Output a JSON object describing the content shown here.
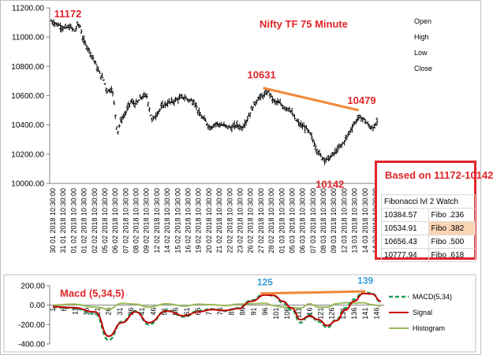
{
  "chart_data": [
    {
      "type": "line",
      "title": "Nifty TF 75 Minute",
      "subtype": "ohlc-bars",
      "ylim": [
        10000,
        11200
      ],
      "yticks": [
        "10000.00",
        "10200.00",
        "10400.00",
        "10600.00",
        "10800.00",
        "11000.00",
        "11200.00"
      ],
      "grid": false,
      "legend_position": "top-right",
      "legend": [
        "Open",
        "High",
        "Low",
        "Close"
      ],
      "x_tick_labels": [
        "30 01 2018 10:30:00",
        "31 01 2018 10:30:00",
        "01 02 2018 10:30:00",
        "01 02 2018 10:30:00",
        "02 02 2018 10:30:00",
        "05 02 2018 10:30:00",
        "06 02 2018 10:30:00",
        "07 02 2018 10:30:00",
        "08 02 2018 10:30:00",
        "09 02 2018 10:30:00",
        "12 02 2018 10:30:00",
        "14 02 2018 10:30:00",
        "15 02 2018 10:30:00",
        "16 02 2018 10:30:00",
        "19 02 2018 10:30:00",
        "20 02 2018 10:30:00",
        "21 02 2018 10:30:00",
        "22 02 2018 10:30:00",
        "23 02 2018 10:30:00",
        "26 02 2018 10:30:00",
        "27 02 2018 10:30:00",
        "28 02 2018 10:30:00",
        "01 03 2018 10:30:00",
        "05 03 2018 10:30:00",
        "06 03 2018 10:30:00",
        "07 03 2018 10:30:00",
        "08 03 2018 10:30:00",
        "09 03 2018 10:30:00",
        "12 03 2018 10:30:00",
        "13 03 2018 10:30:00",
        "14 03 2018 10:30:00",
        "14 03 2018 10:30:00"
      ],
      "price_path": [
        [
          0,
          11110
        ],
        [
          3,
          11080
        ],
        [
          5,
          11060
        ],
        [
          7,
          11070
        ],
        [
          9,
          11040
        ],
        [
          10,
          11090
        ],
        [
          11,
          11070
        ],
        [
          12,
          10980
        ],
        [
          14,
          10920
        ],
        [
          16,
          10850
        ],
        [
          18,
          10760
        ],
        [
          20,
          10700
        ],
        [
          21,
          10630
        ],
        [
          23,
          10650
        ],
        [
          24,
          10500
        ],
        [
          25,
          10340
        ],
        [
          26,
          10420
        ],
        [
          28,
          10480
        ],
        [
          30,
          10560
        ],
        [
          32,
          10540
        ],
        [
          34,
          10590
        ],
        [
          36,
          10600
        ],
        [
          38,
          10430
        ],
        [
          40,
          10480
        ],
        [
          42,
          10530
        ],
        [
          44,
          10550
        ],
        [
          46,
          10560
        ],
        [
          48,
          10580
        ],
        [
          50,
          10590
        ],
        [
          52,
          10570
        ],
        [
          54,
          10560
        ],
        [
          56,
          10470
        ],
        [
          58,
          10430
        ],
        [
          60,
          10380
        ],
        [
          62,
          10410
        ],
        [
          64,
          10400
        ],
        [
          66,
          10390
        ],
        [
          68,
          10380
        ],
        [
          70,
          10400
        ],
        [
          72,
          10380
        ],
        [
          74,
          10440
        ],
        [
          76,
          10520
        ],
        [
          78,
          10580
        ],
        [
          80,
          10600
        ],
        [
          82,
          10630
        ],
        [
          84,
          10560
        ],
        [
          86,
          10550
        ],
        [
          88,
          10520
        ],
        [
          90,
          10510
        ],
        [
          92,
          10440
        ],
        [
          94,
          10400
        ],
        [
          96,
          10380
        ],
        [
          98,
          10330
        ],
        [
          100,
          10240
        ],
        [
          102,
          10180
        ],
        [
          104,
          10160
        ],
        [
          106,
          10190
        ],
        [
          108,
          10230
        ],
        [
          110,
          10270
        ],
        [
          112,
          10330
        ],
        [
          114,
          10400
        ],
        [
          116,
          10450
        ],
        [
          118,
          10440
        ],
        [
          120,
          10390
        ],
        [
          122,
          10380
        ],
        [
          123,
          10420
        ]
      ],
      "annotations": [
        {
          "text": "11172",
          "x": 1,
          "y": 11172
        },
        {
          "text": "10631",
          "x": 80,
          "y": 10631
        },
        {
          "text": "10479",
          "x": 116,
          "y": 10479
        },
        {
          "text": "10142",
          "x": 104,
          "y": 10142
        }
      ],
      "trendline": {
        "from": [
          80,
          10631
        ],
        "to": [
          116,
          10479
        ]
      }
    },
    {
      "type": "line",
      "title": "Macd (5,34,5)",
      "ylim": [
        -400,
        200
      ],
      "yticks": [
        "-400.00",
        "-200.00",
        "0.00",
        "200.00"
      ],
      "x_ticks": [
        "1",
        "6",
        "11",
        "16",
        "21",
        "26",
        "31",
        "36",
        "41",
        "46",
        "51",
        "56",
        "61",
        "66",
        "71",
        "76",
        "81",
        "86",
        "91",
        "96",
        "101",
        "106",
        "111",
        "116",
        "121",
        "126",
        "131",
        "136",
        "141",
        "146"
      ],
      "legend_position": "right",
      "series": [
        {
          "name": "MACD(5,34)",
          "x": [
            1,
            10,
            20,
            26,
            32,
            38,
            44,
            52,
            60,
            66,
            72,
            78,
            84,
            90,
            96,
            100,
            104,
            108,
            112,
            116,
            120,
            124,
            128,
            132,
            136,
            140,
            144,
            148
          ],
          "values": [
            -20,
            -30,
            -90,
            -360,
            -170,
            -60,
            -200,
            -50,
            -120,
            -60,
            -40,
            -60,
            -30,
            50,
            120,
            95,
            25,
            -50,
            -180,
            -100,
            -170,
            -230,
            -150,
            -30,
            60,
            140,
            120,
            30
          ]
        },
        {
          "name": "Signal",
          "x": [
            1,
            10,
            20,
            26,
            32,
            38,
            44,
            52,
            60,
            66,
            72,
            78,
            84,
            90,
            96,
            100,
            104,
            108,
            112,
            116,
            120,
            124,
            128,
            132,
            136,
            140,
            144,
            148
          ],
          "values": [
            -15,
            -25,
            -70,
            -320,
            -180,
            -70,
            -180,
            -60,
            -110,
            -70,
            -45,
            -55,
            -35,
            40,
            105,
            100,
            40,
            -30,
            -150,
            -110,
            -150,
            -210,
            -160,
            -50,
            40,
            120,
            115,
            40
          ]
        },
        {
          "name": "Histogram",
          "x": [
            1,
            10,
            20,
            26,
            32,
            38,
            44,
            52,
            60,
            66,
            72,
            78,
            84,
            90,
            96,
            100,
            104,
            108,
            112,
            116,
            120,
            124,
            128,
            132,
            136,
            140,
            144,
            148
          ],
          "values": [
            0,
            10,
            -20,
            -40,
            20,
            10,
            -20,
            15,
            -10,
            10,
            5,
            -5,
            10,
            15,
            20,
            -5,
            -20,
            -25,
            -30,
            15,
            -20,
            -20,
            15,
            25,
            20,
            25,
            5,
            -10
          ]
        }
      ],
      "annotations": [
        {
          "text": "125",
          "x": 96,
          "y": 125
        },
        {
          "text": "139",
          "x": 141,
          "y": 139
        }
      ],
      "trendline": {
        "from": [
          94,
          120
        ],
        "to": [
          141,
          142
        ]
      }
    }
  ],
  "fibonacci": {
    "title": "Based on 11172-10142",
    "header": "Fibonacci lvl 2 Watch",
    "rows": [
      {
        "value": "10384.57",
        "label": "Fibo .236"
      },
      {
        "value": "10534.91",
        "label": "Fibo .382"
      },
      {
        "value": "10656.43",
        "label": "Fibo .500"
      },
      {
        "value": "10777.94",
        "label": "Fibo .618"
      }
    ]
  },
  "colors": {
    "price": "#000000",
    "accent_red": "#e0262a",
    "trendline": "#f0883a",
    "annotation_blue": "#3a9bd5",
    "macd": "#1f9e5a",
    "signal": "#c00000",
    "histogram": "#9bbb59",
    "highlight": "#fbd4b4"
  }
}
